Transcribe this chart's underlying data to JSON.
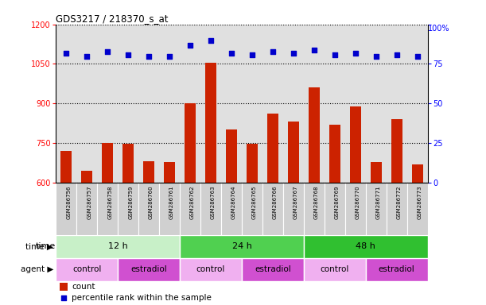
{
  "title": "GDS3217 / 218370_s_at",
  "samples": [
    "GSM286756",
    "GSM286757",
    "GSM286758",
    "GSM286759",
    "GSM286760",
    "GSM286761",
    "GSM286762",
    "GSM286763",
    "GSM286764",
    "GSM286765",
    "GSM286766",
    "GSM286767",
    "GSM286768",
    "GSM286769",
    "GSM286770",
    "GSM286771",
    "GSM286772",
    "GSM286773"
  ],
  "counts": [
    720,
    645,
    750,
    748,
    680,
    678,
    902,
    1055,
    800,
    748,
    862,
    830,
    960,
    820,
    890,
    678,
    840,
    668
  ],
  "percentile_ranks": [
    82,
    80,
    83,
    81,
    80,
    80,
    87,
    90,
    82,
    81,
    83,
    82,
    84,
    81,
    82,
    80,
    81,
    80
  ],
  "ylim_left": [
    600,
    1200
  ],
  "ylim_right": [
    0,
    100
  ],
  "yticks_left": [
    600,
    750,
    900,
    1050,
    1200
  ],
  "yticks_right": [
    0,
    25,
    50,
    75,
    100
  ],
  "bar_color": "#cc2200",
  "dot_color": "#0000cc",
  "plot_bg": "#e0e0e0",
  "xtick_bg": "#d0d0d0",
  "time_groups": [
    {
      "label": "12 h",
      "start": 0,
      "end": 6,
      "color": "#c8f0c8"
    },
    {
      "label": "24 h",
      "start": 6,
      "end": 12,
      "color": "#50d050"
    },
    {
      "label": "48 h",
      "start": 12,
      "end": 18,
      "color": "#30c030"
    }
  ],
  "agent_groups": [
    {
      "label": "control",
      "start": 0,
      "end": 3,
      "color": "#f0b0f0"
    },
    {
      "label": "estradiol",
      "start": 3,
      "end": 6,
      "color": "#d050d0"
    },
    {
      "label": "control",
      "start": 6,
      "end": 9,
      "color": "#f0b0f0"
    },
    {
      "label": "estradiol",
      "start": 9,
      "end": 12,
      "color": "#d050d0"
    },
    {
      "label": "control",
      "start": 12,
      "end": 15,
      "color": "#f0b0f0"
    },
    {
      "label": "estradiol",
      "start": 15,
      "end": 18,
      "color": "#d050d0"
    }
  ],
  "legend_count_label": "count",
  "legend_pct_label": "percentile rank within the sample",
  "time_label": "time",
  "agent_label": "agent",
  "right_axis_top_label": "100%"
}
